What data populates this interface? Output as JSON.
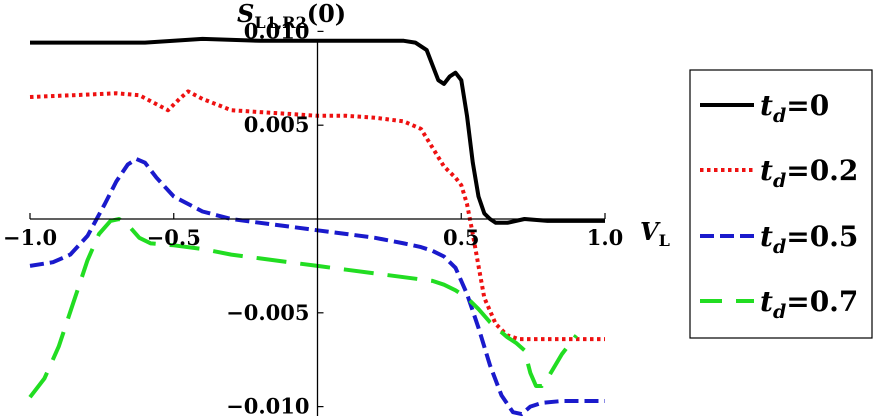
{
  "chart_data": {
    "type": "line",
    "ylabel": "S",
    "ylabel_sub": "L1,R2",
    "ylabel_suffix": "(0)",
    "xlabel": "V",
    "xlabel_sub": "L",
    "xlim": [
      -1.0,
      1.0
    ],
    "ylim": [
      -0.0105,
      0.0105
    ],
    "x_ticks": [
      {
        "value": -1.0,
        "label": "−1.0"
      },
      {
        "value": -0.5,
        "label": "−0.5"
      },
      {
        "value": 0.5,
        "label": "0.5"
      },
      {
        "value": 1.0,
        "label": "1.0"
      }
    ],
    "y_ticks": [
      {
        "value": 0.01,
        "label": "0.010"
      },
      {
        "value": 0.005,
        "label": "0.005"
      },
      {
        "value": -0.005,
        "label": "−0.005"
      },
      {
        "value": -0.01,
        "label": "−0.010"
      }
    ],
    "grid": false,
    "legend_position": "right",
    "series": [
      {
        "name": "t_d=0",
        "legend_main": "t",
        "legend_sub": "d",
        "legend_value": "=0",
        "color": "#000000",
        "dash": "solid",
        "x": [
          -1.0,
          -0.6,
          -0.4,
          -0.2,
          0.0,
          0.2,
          0.3,
          0.34,
          0.38,
          0.4,
          0.42,
          0.44,
          0.46,
          0.48,
          0.5,
          0.52,
          0.54,
          0.56,
          0.58,
          0.6,
          0.62,
          0.66,
          0.72,
          0.8,
          0.9,
          1.0
        ],
        "y": [
          0.0094,
          0.0094,
          0.0096,
          0.0095,
          0.0095,
          0.0095,
          0.0095,
          0.0094,
          0.009,
          0.0082,
          0.0074,
          0.0072,
          0.0076,
          0.0078,
          0.0074,
          0.0055,
          0.003,
          0.0012,
          0.0003,
          0.0,
          -0.0002,
          -0.0002,
          0.0,
          -0.0001,
          -0.0001,
          -0.0001
        ]
      },
      {
        "name": "t_d=0.2",
        "legend_main": "t",
        "legend_sub": "d",
        "legend_value": "=0.2",
        "color": "#ee1111",
        "dash": "dotted",
        "x": [
          -1.0,
          -0.85,
          -0.7,
          -0.62,
          -0.57,
          -0.52,
          -0.48,
          -0.45,
          -0.4,
          -0.3,
          -0.2,
          -0.1,
          0.0,
          0.1,
          0.2,
          0.3,
          0.36,
          0.4,
          0.44,
          0.48,
          0.5,
          0.52,
          0.54,
          0.56,
          0.58,
          0.62,
          0.66,
          0.7,
          0.8,
          0.9,
          1.0
        ],
        "y": [
          0.0065,
          0.0066,
          0.0067,
          0.0066,
          0.0062,
          0.0058,
          0.0064,
          0.0068,
          0.0064,
          0.0058,
          0.0057,
          0.0056,
          0.0055,
          0.0055,
          0.0054,
          0.0052,
          0.0048,
          0.0038,
          0.0028,
          0.0022,
          0.0018,
          0.0008,
          -0.0008,
          -0.0025,
          -0.0042,
          -0.0056,
          -0.0062,
          -0.0064,
          -0.0064,
          -0.0064,
          -0.0064
        ]
      },
      {
        "name": "t_d=0.5",
        "legend_main": "t",
        "legend_sub": "d",
        "legend_value": "=0.5",
        "color": "#1a1acc",
        "dash": "dashed",
        "x": [
          -1.0,
          -0.92,
          -0.86,
          -0.8,
          -0.74,
          -0.7,
          -0.66,
          -0.63,
          -0.6,
          -0.56,
          -0.5,
          -0.4,
          -0.3,
          -0.2,
          -0.1,
          0.0,
          0.1,
          0.2,
          0.3,
          0.36,
          0.4,
          0.44,
          0.48,
          0.52,
          0.56,
          0.6,
          0.64,
          0.68,
          0.71,
          0.74,
          0.78,
          0.85,
          0.92,
          1.0
        ],
        "y": [
          -0.0025,
          -0.0023,
          -0.0019,
          -0.0009,
          0.0008,
          0.002,
          0.0029,
          0.0032,
          0.003,
          0.0022,
          0.0012,
          0.0004,
          0.0,
          -0.0002,
          -0.0004,
          -0.0006,
          -0.0008,
          -0.001,
          -0.0013,
          -0.0015,
          -0.0017,
          -0.002,
          -0.0026,
          -0.004,
          -0.0058,
          -0.0078,
          -0.0094,
          -0.0103,
          -0.0104,
          -0.01,
          -0.0098,
          -0.0097,
          -0.0097,
          -0.0097
        ]
      },
      {
        "name": "t_d=0.7",
        "legend_main": "t",
        "legend_sub": "d",
        "legend_value": "=0.7",
        "color": "#22dd22",
        "dash": "longdash",
        "x": [
          -1.0,
          -0.95,
          -0.9,
          -0.85,
          -0.8,
          -0.76,
          -0.72,
          -0.69,
          -0.66,
          -0.62,
          -0.58,
          -0.5,
          -0.4,
          -0.3,
          -0.2,
          -0.1,
          0.0,
          0.1,
          0.2,
          0.3,
          0.4,
          0.44,
          0.48,
          0.52,
          0.56,
          0.6,
          0.63,
          0.66,
          0.69,
          0.72,
          0.74,
          0.76,
          0.78,
          0.8,
          0.85,
          0.9
        ],
        "y": [
          -0.0095,
          -0.0085,
          -0.0068,
          -0.0045,
          -0.0022,
          -0.0008,
          -0.0001,
          0.0,
          -0.0003,
          -0.001,
          -0.0013,
          -0.0014,
          -0.0016,
          -0.0019,
          -0.0021,
          -0.0023,
          -0.0025,
          -0.0027,
          -0.0029,
          -0.0031,
          -0.0033,
          -0.0035,
          -0.0038,
          -0.0042,
          -0.0048,
          -0.0055,
          -0.0059,
          -0.0063,
          -0.0066,
          -0.007,
          -0.0082,
          -0.0089,
          -0.0089,
          -0.0085,
          -0.0072,
          -0.0062
        ]
      }
    ]
  }
}
